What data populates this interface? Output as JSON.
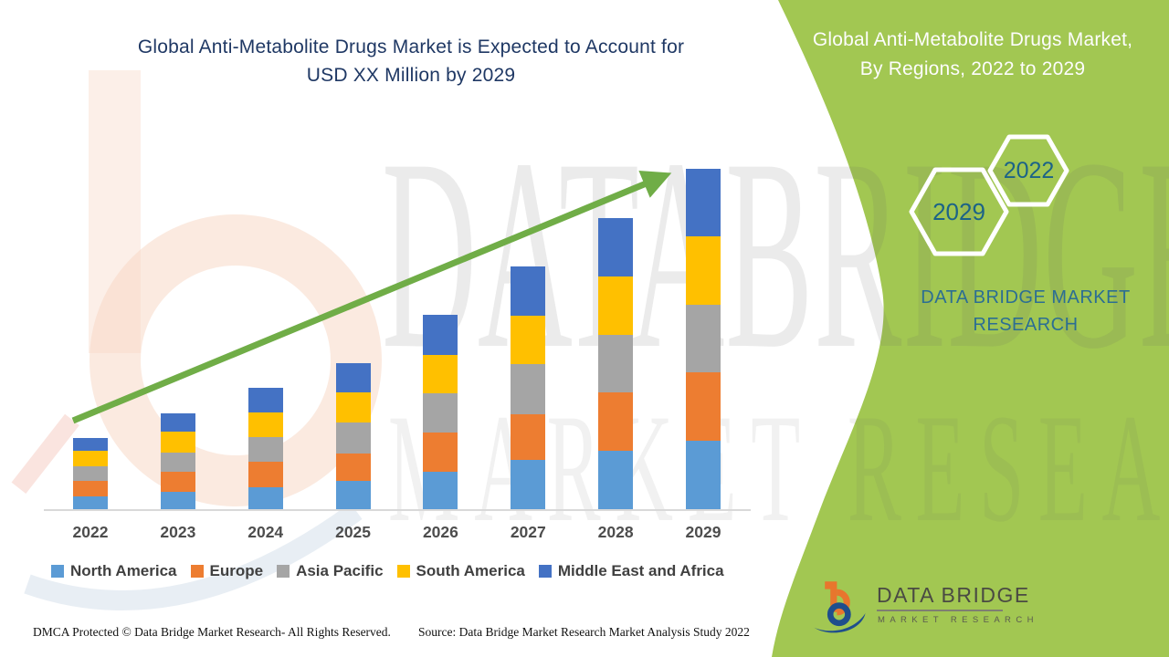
{
  "header": {
    "title_line1": "Global Anti-Metabolite Drugs Market is Expected to Account for",
    "title_line2": "USD XX Million by 2029",
    "title_color": "#1F3864"
  },
  "banner": {
    "heading_line1": "Global Anti-Metabolite Drugs Market,",
    "heading_line2": "By Regions, 2022 to 2029",
    "badge_upper": "2022",
    "badge_lower": "2029",
    "org_line1": "DATA BRIDGE MARKET",
    "org_line2": "RESEARCH",
    "green_color": "#A2C752",
    "text_blue": "#2C6E93"
  },
  "chart_data": {
    "type": "bar",
    "stacked": true,
    "title": "Global Anti-Metabolite Drugs Market is Expected to Account for USD XX Million by 2029",
    "categories": [
      "2022",
      "2023",
      "2024",
      "2025",
      "2026",
      "2027",
      "2028",
      "2029"
    ],
    "series": [
      {
        "name": "North America",
        "color": "#5B9BD5",
        "values": [
          15,
          20,
          25,
          32,
          42,
          55,
          65,
          76
        ]
      },
      {
        "name": "Europe",
        "color": "#ED7D31",
        "values": [
          17,
          22,
          28,
          30,
          43,
          50,
          64,
          75
        ]
      },
      {
        "name": "Asia Pacific",
        "color": "#A5A5A5",
        "values": [
          16,
          21,
          27,
          34,
          43,
          55,
          63,
          74
        ]
      },
      {
        "name": "South America",
        "color": "#FFC000",
        "values": [
          17,
          23,
          27,
          33,
          42,
          53,
          64,
          75
        ]
      },
      {
        "name": "Middle East and Africa",
        "color": "#4472C4",
        "values": [
          14,
          20,
          27,
          32,
          44,
          54,
          64,
          74
        ]
      }
    ],
    "totals": [
      79,
      106,
      134,
      161,
      214,
      267,
      320,
      374
    ],
    "units": "relative units estimated from bar heights (actual values hidden: USD XX Million)",
    "value_axis_visible": false,
    "grid": false,
    "legend_position": "bottom",
    "trend_arrow": true,
    "trend_arrow_color": "#70AD47"
  },
  "watermark": {
    "line1": "DATABRIDGE",
    "line2": "MARKET RESEARCH"
  },
  "footer": {
    "dmca": "DMCA Protected © Data Bridge Market Research- All Rights Reserved.",
    "source": "Source: Data Bridge Market Research Market Analysis Study 2022"
  },
  "logo": {
    "name": "DATA BRIDGE",
    "subtitle": "MARKET RESEARCH"
  }
}
